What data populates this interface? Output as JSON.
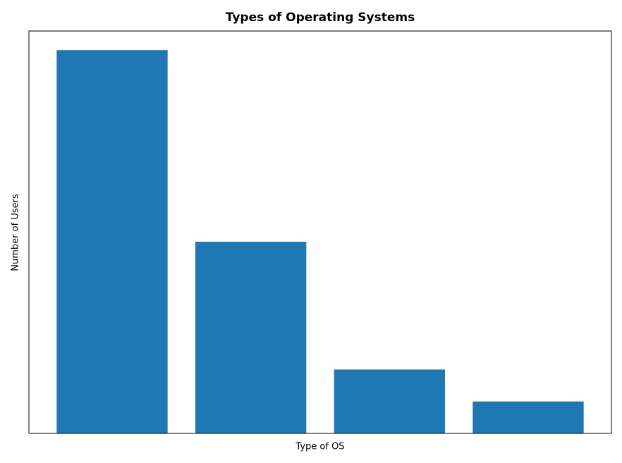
{
  "chart_data": {
    "type": "bar",
    "title": "Types of Operating Systems",
    "x_label": "Type of OS",
    "y_label": "Number of Users",
    "categories": [
      null,
      null,
      null,
      null
    ],
    "values": [
      60,
      30,
      10,
      5
    ],
    "color": "#1f77b4",
    "ylim": [
      0,
      63
    ]
  }
}
